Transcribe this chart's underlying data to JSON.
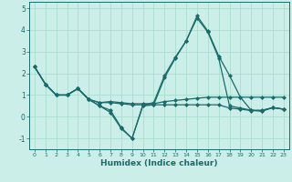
{
  "xlabel": "Humidex (Indice chaleur)",
  "bg_color": "#cceee8",
  "grid_color": "#aaddcc",
  "line_color": "#1a6b6b",
  "xlim": [
    -0.5,
    23.5
  ],
  "ylim": [
    -1.5,
    5.3
  ],
  "yticks": [
    -1,
    0,
    1,
    2,
    3,
    4,
    5
  ],
  "xticks": [
    0,
    1,
    2,
    3,
    4,
    5,
    6,
    7,
    8,
    9,
    10,
    11,
    12,
    13,
    14,
    15,
    16,
    17,
    18,
    19,
    20,
    21,
    22,
    23
  ],
  "series": [
    [
      2.3,
      1.5,
      1.0,
      1.0,
      1.3,
      0.8,
      0.65,
      0.7,
      0.65,
      0.6,
      0.6,
      0.6,
      0.7,
      0.75,
      0.8,
      0.85,
      0.9,
      0.9,
      0.9,
      0.9,
      0.9,
      0.9,
      0.9,
      0.9
    ],
    [
      2.3,
      1.5,
      1.0,
      1.0,
      1.3,
      0.8,
      0.5,
      0.3,
      -0.5,
      -1.0,
      0.55,
      0.65,
      1.9,
      2.75,
      3.5,
      4.65,
      3.95,
      2.8,
      1.9,
      0.9,
      0.3,
      0.3,
      0.42,
      0.35
    ],
    [
      2.3,
      1.5,
      1.0,
      1.0,
      1.3,
      0.8,
      0.5,
      0.2,
      -0.55,
      -1.0,
      0.5,
      0.55,
      1.8,
      2.7,
      3.5,
      4.55,
      3.9,
      2.7,
      0.5,
      0.4,
      0.3,
      0.25,
      0.42,
      0.35
    ],
    [
      2.3,
      1.5,
      1.0,
      1.0,
      1.3,
      0.8,
      0.65,
      0.65,
      0.6,
      0.55,
      0.55,
      0.55,
      0.55,
      0.55,
      0.55,
      0.55,
      0.55,
      0.55,
      0.4,
      0.35,
      0.28,
      0.28,
      0.42,
      0.35
    ]
  ]
}
